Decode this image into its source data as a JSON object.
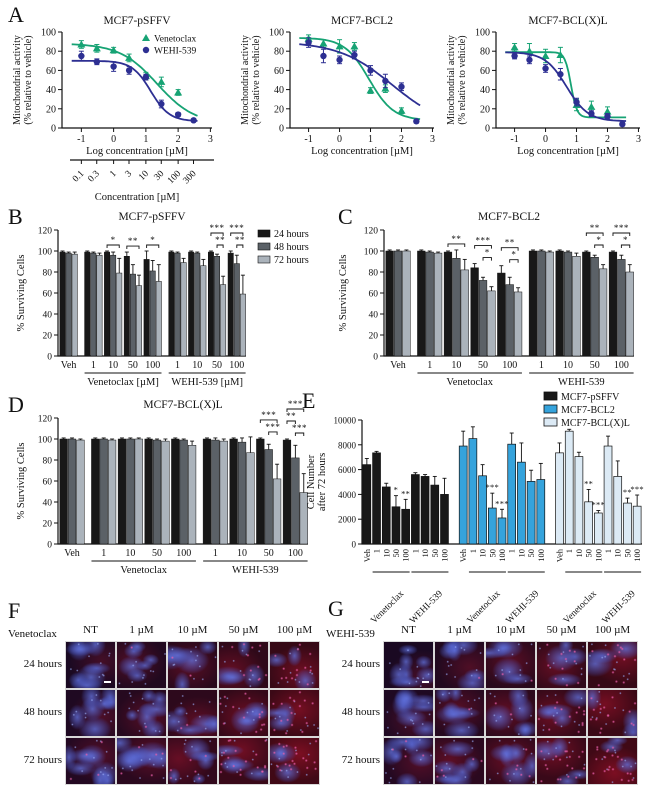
{
  "panels": {
    "a": "A",
    "b": "B",
    "c": "C",
    "d": "D",
    "e": "E",
    "f": "F",
    "g": "G"
  },
  "colors": {
    "venetoclax_green": "#17A374",
    "wehi_blue": "#2D2F92",
    "h24": "#181818",
    "h48": "#5B6167",
    "h72": "#ABB3BB",
    "bcl2_blue": "#35A3DC",
    "bclxl_lightblue": "#DCEAF5",
    "axis": "#111111"
  },
  "chart_data": [
    {
      "id": "A1",
      "type": "line",
      "title": "MCF7-pSFFV",
      "xlabel": "Log concentration [µM]",
      "ylabel": [
        "Mitochondrial activity",
        "(% relative to vehicle)"
      ],
      "xlim": [
        -1.6,
        3.05
      ],
      "ylim": [
        0,
        100
      ],
      "xticks": [
        -1,
        0,
        1,
        2,
        3
      ],
      "yticks": [
        0,
        20,
        40,
        60,
        80,
        100
      ],
      "legend": true,
      "legend_position": "top-right",
      "series": [
        {
          "name": "Venetoclax",
          "marker": "triangle",
          "color": "#17A374",
          "x": [
            -1,
            -0.52,
            0,
            0.48,
            1,
            1.48,
            2
          ],
          "y": [
            87,
            83,
            81,
            73,
            54,
            48,
            37
          ],
          "err": [
            4,
            4,
            3,
            4,
            4,
            5,
            3
          ],
          "fit": {
            "top": 88,
            "bottom": 4,
            "ec50": 1.35,
            "hill": 0.75
          }
        },
        {
          "name": "WEHI-539",
          "marker": "circle",
          "color": "#2D2F92",
          "x": [
            -1,
            -0.52,
            0,
            0.48,
            1,
            1.48,
            2,
            2.48
          ],
          "y": [
            75,
            69,
            64,
            60,
            53,
            25,
            14,
            8
          ],
          "err": [
            5,
            3,
            5,
            4,
            3,
            4,
            2,
            1
          ],
          "fit": {
            "top": 70,
            "bottom": 7,
            "ec50": 1.15,
            "hill": 1.5
          }
        }
      ],
      "conc_axis": {
        "label": "Concentration [µM]",
        "ticks": [
          "0.1",
          "0.3",
          "1",
          "3",
          "10",
          "30",
          "100",
          "300"
        ],
        "tick_logs": [
          -1,
          -0.523,
          0,
          0.477,
          1,
          1.477,
          2,
          2.477
        ]
      }
    },
    {
      "id": "A2",
      "type": "line",
      "title": "MCF7-BCL2",
      "xlabel": "Log concentration [µM]",
      "ylabel": [
        "Mitochondrial activity",
        "(% relative to vehicle)"
      ],
      "xlim": [
        -1.6,
        3.05
      ],
      "ylim": [
        0,
        100
      ],
      "xticks": [
        -1,
        0,
        1,
        2,
        3
      ],
      "yticks": [
        0,
        20,
        40,
        60,
        80,
        100
      ],
      "legend": false,
      "series": [
        {
          "name": "Venetoclax",
          "marker": "triangle",
          "color": "#17A374",
          "x": [
            -1,
            -0.52,
            0,
            0.48,
            1,
            1.48,
            2
          ],
          "y": [
            93,
            88,
            85,
            85,
            39,
            41,
            18
          ],
          "err": [
            4,
            4,
            7,
            4,
            3,
            4,
            3
          ],
          "fit": {
            "top": 94,
            "bottom": 8,
            "ec50": 0.95,
            "hill": 1.1
          }
        },
        {
          "name": "WEHI-539",
          "marker": "circle",
          "color": "#2D2F92",
          "x": [
            -1,
            -0.52,
            0,
            0.48,
            1,
            1.48,
            2,
            2.48
          ],
          "y": [
            89,
            75,
            71,
            76,
            60,
            49,
            43,
            7
          ],
          "err": [
            5,
            7,
            4,
            4,
            5,
            7,
            4,
            2
          ],
          "fit": {
            "top": 90,
            "bottom": 0,
            "ec50": 1.7,
            "hill": 0.5
          }
        }
      ]
    },
    {
      "id": "A3",
      "type": "line",
      "title": "MCF7-BCL(X)L",
      "xlabel": "Log concentration [µM]",
      "ylabel": [
        "Mitochondrial activity",
        "(% relative to vehicle)"
      ],
      "xlim": [
        -1.6,
        3.05
      ],
      "ylim": [
        0,
        100
      ],
      "xticks": [
        -1,
        0,
        1,
        2,
        3
      ],
      "yticks": [
        0,
        20,
        40,
        60,
        80,
        100
      ],
      "legend": false,
      "series": [
        {
          "name": "Venetoclax",
          "marker": "triangle",
          "color": "#17A374",
          "x": [
            -1,
            -0.52,
            0,
            0.48,
            1,
            1.48,
            2
          ],
          "y": [
            84,
            80,
            75,
            76,
            24,
            22,
            17
          ],
          "err": [
            4,
            8,
            7,
            8,
            6,
            6,
            5
          ],
          "fit": {
            "top": 79,
            "bottom": 11,
            "ec50": 0.82,
            "hill": 4.5
          }
        },
        {
          "name": "WEHI-539",
          "marker": "circle",
          "color": "#2D2F92",
          "x": [
            -1,
            -0.52,
            0,
            0.48,
            1,
            1.48,
            2,
            2.48
          ],
          "y": [
            75,
            71,
            62,
            56,
            27,
            15,
            12,
            4
          ],
          "err": [
            3,
            4,
            4,
            6,
            4,
            3,
            3,
            2
          ],
          "fit": {
            "top": 79,
            "bottom": 7,
            "ec50": 0.68,
            "hill": 1.25
          }
        }
      ]
    },
    {
      "id": "B",
      "type": "bar",
      "title": "MCF7-pSFFV",
      "ylabel": "% Surviving Cells",
      "ylim": [
        0,
        120
      ],
      "yticks": [
        0,
        20,
        40,
        60,
        80,
        100,
        120
      ],
      "categories": [
        "Veh",
        "1",
        "10",
        "50",
        "100",
        "1",
        "10",
        "50",
        "100"
      ],
      "group_labels": [
        {
          "label": "Venetoclax [µM]",
          "from": 1,
          "to": 4
        },
        {
          "label": "WEHI-539 [µM]",
          "from": 5,
          "to": 8
        }
      ],
      "series": [
        {
          "name": "24 hours",
          "color": "#181818",
          "values": [
            99,
            99,
            99,
            95,
            92,
            99,
            99,
            99,
            98
          ],
          "err": [
            1,
            1,
            1,
            4,
            8,
            1,
            1,
            1,
            2
          ]
        },
        {
          "name": "48 hours",
          "color": "#5B6167",
          "values": [
            98,
            98,
            96,
            78,
            81,
            98,
            98,
            95,
            88
          ],
          "err": [
            1,
            1,
            3,
            9,
            10,
            1,
            1,
            2,
            8
          ]
        },
        {
          "name": "72 hours",
          "color": "#ABB3BB",
          "values": [
            97,
            96,
            79,
            67,
            71,
            89,
            86,
            68,
            59
          ],
          "err": [
            2,
            2,
            14,
            10,
            16,
            4,
            6,
            8,
            18
          ]
        }
      ],
      "annotations": [
        {
          "cat": 2,
          "stars": [
            "*"
          ]
        },
        {
          "cat": 3,
          "stars": [
            "**"
          ]
        },
        {
          "cat": 4,
          "stars": [
            "*"
          ]
        },
        {
          "cat": 7,
          "stars": [
            "***",
            "**"
          ]
        },
        {
          "cat": 8,
          "stars": [
            "***",
            "**"
          ]
        }
      ],
      "show_legend": true
    },
    {
      "id": "C",
      "type": "bar",
      "title": "MCF7-BCL2",
      "ylabel": "% Surviving Cells",
      "ylim": [
        0,
        120
      ],
      "yticks": [
        0,
        20,
        40,
        60,
        80,
        100,
        120
      ],
      "categories": [
        "Veh",
        "1",
        "10",
        "50",
        "100",
        "1",
        "10",
        "50",
        "100"
      ],
      "group_labels": [
        {
          "label": "Venetoclax",
          "from": 1,
          "to": 4
        },
        {
          "label": "WEHI-539",
          "from": 5,
          "to": 8
        }
      ],
      "series": [
        {
          "name": "24 hours",
          "color": "#181818",
          "values": [
            100,
            100,
            99,
            84,
            79,
            100,
            100,
            99,
            99
          ],
          "err": [
            1,
            1,
            1,
            4,
            7,
            1,
            1,
            1,
            1
          ]
        },
        {
          "name": "48 hours",
          "color": "#5B6167",
          "values": [
            100,
            99,
            93,
            72,
            68,
            100,
            99,
            94,
            92
          ],
          "err": [
            1,
            1,
            8,
            3,
            7,
            1,
            1,
            2,
            4
          ]
        },
        {
          "name": "72 hours",
          "color": "#ABB3BB",
          "values": [
            100,
            98,
            82,
            62,
            61,
            99,
            95,
            83,
            80
          ],
          "err": [
            1,
            1,
            10,
            4,
            4,
            1,
            3,
            4,
            7
          ]
        }
      ],
      "annotations": [
        {
          "cat": 2,
          "stars": [
            "**"
          ]
        },
        {
          "cat": 3,
          "stars": [
            "***",
            "*"
          ]
        },
        {
          "cat": 4,
          "stars": [
            "**",
            "*"
          ]
        },
        {
          "cat": 7,
          "stars": [
            "**",
            "*"
          ]
        },
        {
          "cat": 8,
          "stars": [
            "***",
            "*"
          ]
        }
      ],
      "show_legend": false
    },
    {
      "id": "D",
      "type": "bar",
      "title": "MCF7-BCL(X)L",
      "ylabel": "% Surviving Cells",
      "ylim": [
        0,
        120
      ],
      "yticks": [
        0,
        20,
        40,
        60,
        80,
        100,
        120
      ],
      "categories": [
        "Veh",
        "1",
        "10",
        "50",
        "100",
        "1",
        "10",
        "50",
        "100"
      ],
      "group_labels": [
        {
          "label": "Venetoclax",
          "from": 1,
          "to": 4
        },
        {
          "label": "WEHI-539",
          "from": 5,
          "to": 8
        }
      ],
      "series": [
        {
          "name": "24 hours",
          "color": "#181818",
          "values": [
            100,
            100,
            100,
            100,
            100,
            100,
            100,
            100,
            99
          ],
          "err": [
            1,
            1,
            1,
            1,
            1,
            1,
            1,
            1,
            1
          ]
        },
        {
          "name": "48 hours",
          "color": "#5B6167",
          "values": [
            100,
            100,
            100,
            99,
            99,
            99,
            97,
            90,
            82
          ],
          "err": [
            1,
            1,
            1,
            1,
            1,
            2,
            4,
            5,
            12
          ]
        },
        {
          "name": "72 hours",
          "color": "#ABB3BB",
          "values": [
            99,
            99,
            100,
            98,
            94,
            98,
            87,
            62,
            49
          ],
          "err": [
            1,
            1,
            1,
            2,
            4,
            2,
            15,
            14,
            18
          ]
        }
      ],
      "annotations": [
        {
          "cat": 7,
          "stars": [
            "***",
            "***"
          ]
        },
        {
          "cat": 8,
          "stars": [
            "***",
            "**",
            "***"
          ]
        }
      ],
      "show_legend": false
    },
    {
      "id": "E",
      "type": "bar-multi",
      "ylabel": [
        "Cell Number",
        "after 72 hours"
      ],
      "ylim": [
        0,
        10000
      ],
      "yticks": [
        0,
        2000,
        4000,
        6000,
        8000,
        10000
      ],
      "categories": [
        "Veh",
        "1",
        "10",
        "50",
        "100",
        "1",
        "10",
        "50",
        "100"
      ],
      "sub_groups": [
        {
          "label": "Venetoclax",
          "from": 1,
          "to": 4
        },
        {
          "label": "WEHI-539",
          "from": 5,
          "to": 8
        }
      ],
      "groups": [
        {
          "name": "MCF7-pSFFV",
          "color": "#181818",
          "values": [
            6400,
            7350,
            4600,
            3000,
            2800,
            5600,
            5450,
            4750,
            4000
          ],
          "err": [
            500,
            120,
            300,
            900,
            800,
            150,
            150,
            700,
            1300
          ],
          "sig": {
            "3": "*",
            "4": "**"
          }
        },
        {
          "name": "MCF7-BCL2",
          "color": "#35A3DC",
          "values": [
            7900,
            8500,
            5500,
            2900,
            2100,
            8050,
            6600,
            5050,
            5200
          ],
          "err": [
            1200,
            950,
            900,
            1200,
            700,
            900,
            1550,
            900,
            1300
          ],
          "sig": {
            "3": "***",
            "4": "***"
          }
        },
        {
          "name": "MCF7-BCL(X)L",
          "color": "#DCEAF5",
          "values": [
            7350,
            9100,
            7050,
            3400,
            2500,
            7900,
            5450,
            3300,
            3050
          ],
          "err": [
            800,
            150,
            350,
            1000,
            200,
            800,
            1250,
            400,
            900
          ],
          "sig": {
            "3": "**",
            "4": "***",
            "7": "**",
            "8": "***"
          }
        }
      ]
    }
  ],
  "micrographs": [
    {
      "panel": "F",
      "drug": "Venetoclax",
      "columns": [
        "NT",
        "1 µM",
        "10 µM",
        "50 µM",
        "100 µM"
      ],
      "rows": [
        "24 hours",
        "48 hours",
        "72 hours"
      ]
    },
    {
      "panel": "G",
      "drug": "WEHI-539",
      "columns": [
        "NT",
        "1 µM",
        "10 µM",
        "50 µM",
        "100 µM"
      ],
      "rows": [
        "24 hours",
        "48 hours",
        "72 hours"
      ]
    }
  ]
}
